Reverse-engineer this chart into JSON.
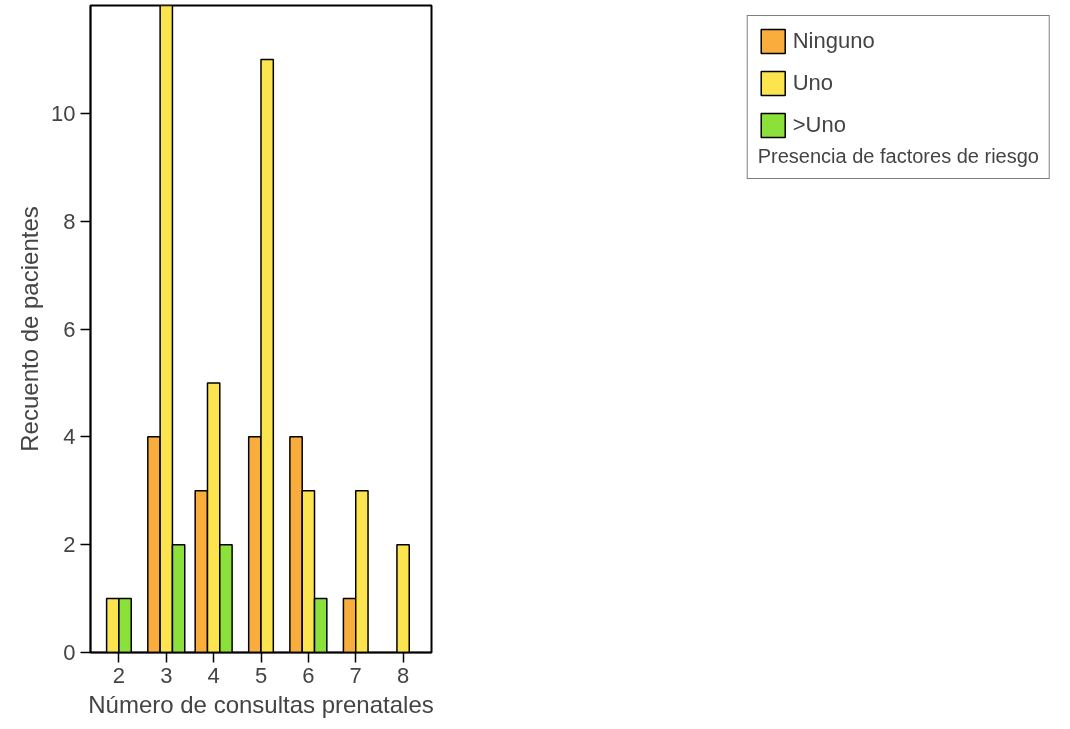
{
  "chart_data": {
    "type": "bar",
    "xlabel": "Número de consultas prenatales",
    "ylabel": "Recuento de pacientes",
    "legend_title": "Presencia de factores de riesgo",
    "categories": [
      "2",
      "3",
      "4",
      "5",
      "6",
      "7",
      "8"
    ],
    "series": [
      {
        "name": "Ninguno",
        "color": "#f9ad3c",
        "values": [
          null,
          4,
          3,
          4,
          4,
          1,
          null
        ]
      },
      {
        "name": "Uno",
        "color": "#fbe44e",
        "values": [
          1,
          12,
          5,
          11,
          3,
          3,
          2
        ]
      },
      {
        "name": ">Uno",
        "color": "#8ce03a",
        "values": [
          1,
          2,
          2,
          null,
          1,
          null,
          null
        ]
      }
    ],
    "ylim": [
      0,
      12
    ],
    "yticks": [
      0,
      2,
      4,
      6,
      8,
      10
    ],
    "grid": false,
    "legend": "top right"
  }
}
